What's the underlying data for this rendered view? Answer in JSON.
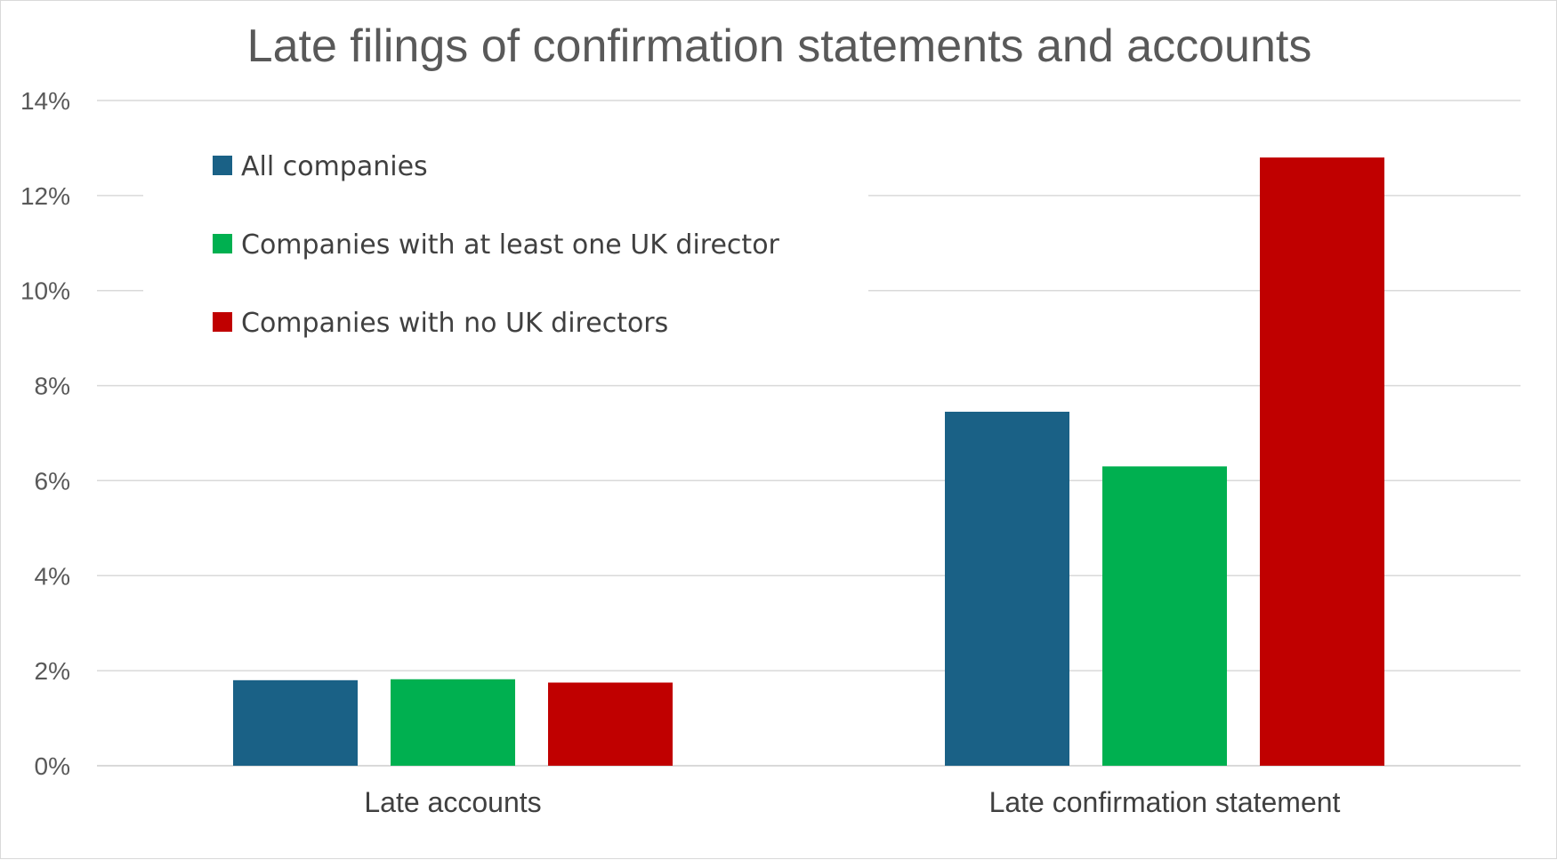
{
  "chart_data": {
    "type": "bar",
    "title": "Late filings of confirmation statements and accounts",
    "xlabel": "",
    "ylabel": "",
    "categories": [
      "Late accounts",
      "Late confirmation statement"
    ],
    "series": [
      {
        "name": "All companies",
        "color": "#1a6186",
        "values": [
          1.8,
          7.45
        ]
      },
      {
        "name": "Companies with at least one UK director",
        "color": "#00b050",
        "values": [
          1.82,
          6.3
        ]
      },
      {
        "name": "Companies with no UK directors",
        "color": "#c00000",
        "values": [
          1.75,
          12.8
        ]
      }
    ],
    "ylim": [
      0,
      14
    ],
    "yticks": [
      0,
      2,
      4,
      6,
      8,
      10,
      12,
      14
    ],
    "ytick_labels": [
      "0%",
      "2%",
      "4%",
      "6%",
      "8%",
      "10%",
      "12%",
      "14%"
    ],
    "grid": true,
    "legend_position": "top-left inside"
  }
}
